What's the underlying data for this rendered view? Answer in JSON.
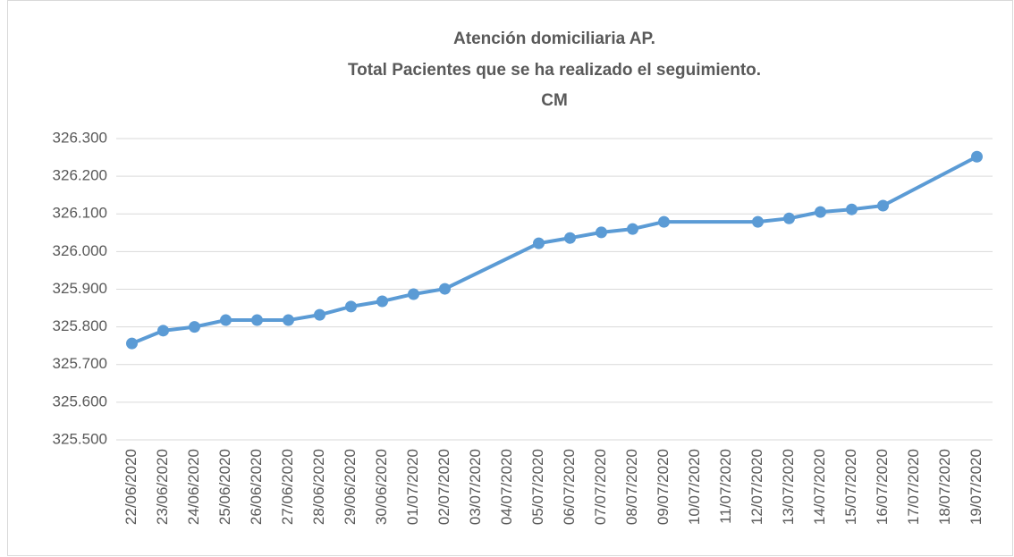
{
  "chart_data": {
    "type": "line",
    "title": [
      "Atención domiciliaria AP.",
      "Total Pacientes que se ha realizado el seguimiento.",
      "CM"
    ],
    "categories": [
      "22/06/2020",
      "23/06/2020",
      "24/06/2020",
      "25/06/2020",
      "26/06/2020",
      "27/06/2020",
      "28/06/2020",
      "29/06/2020",
      "30/06/2020",
      "01/07/2020",
      "02/07/2020",
      "03/07/2020",
      "04/07/2020",
      "05/07/2020",
      "06/07/2020",
      "07/07/2020",
      "08/07/2020",
      "09/07/2020",
      "10/07/2020",
      "11/07/2020",
      "12/07/2020",
      "13/07/2020",
      "14/07/2020",
      "15/07/2020",
      "16/07/2020",
      "17/07/2020",
      "18/07/2020",
      "19/07/2020"
    ],
    "series": [
      {
        "color": "#5b9bd5",
        "values": [
          325756,
          325790,
          325800,
          325818,
          325818,
          325818,
          325832,
          325854,
          325868,
          325887,
          325901,
          null,
          null,
          326022,
          326036,
          326051,
          326060,
          326079,
          null,
          null,
          326079,
          326088,
          326105,
          326112,
          326122,
          null,
          null,
          326252
        ]
      }
    ],
    "ylim": [
      325500,
      326300
    ],
    "yticks": [
      {
        "value": 325500,
        "label": "325.500"
      },
      {
        "value": 325600,
        "label": "325.600"
      },
      {
        "value": 325700,
        "label": "325.700"
      },
      {
        "value": 325800,
        "label": "325.800"
      },
      {
        "value": 325900,
        "label": "325.900"
      },
      {
        "value": 326000,
        "label": "326.000"
      },
      {
        "value": 326100,
        "label": "326.100"
      },
      {
        "value": 326200,
        "label": "326.200"
      },
      {
        "value": 326300,
        "label": "326.300"
      }
    ],
    "grid": true
  }
}
